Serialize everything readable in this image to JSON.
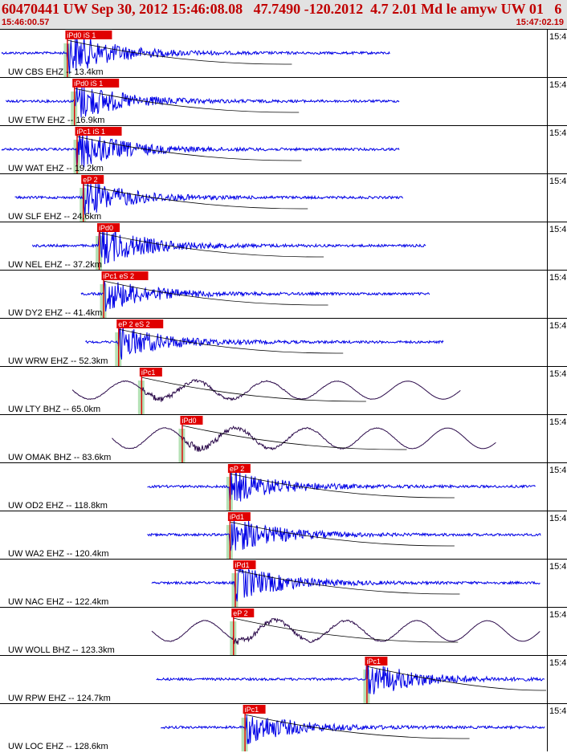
{
  "header": {
    "title": "60470441 UW Sep 30, 2012 15:46:08.08   47.7490 -120.2012  4.7 2.01 Md le amyw UW 01   6",
    "start_time": "15:46:00.57",
    "end_time": "15:47:02.19"
  },
  "colors": {
    "short_period": "#0000e6",
    "broadband": "#2b0a4a",
    "pick": "#e00000",
    "window": "#a8dca8",
    "header_text": "#c00000"
  },
  "chart_data": {
    "type": "line",
    "title": "60470441 UW Sep 30, 2012 15:46:08.08   47.7490 -120.2012  4.7 2.01 Md le amyw UW 01   6",
    "x_range": [
      "15:46:00.57",
      "15:47:02.19"
    ],
    "time_span_s": 61.62,
    "tick_label": "15:4",
    "grid": false,
    "series": [
      {
        "name": "UW CBS EHZ -- 13.4km",
        "start": 0.0,
        "end": 44.0,
        "p_time": 7.4,
        "pick": "iPd0 iS 1",
        "amp": 26,
        "bb": false
      },
      {
        "name": "UW ETW EHZ -- 16.9km",
        "start": 0.5,
        "end": 45.0,
        "p_time": 8.2,
        "pick": "iPd0 iS 1",
        "amp": 24,
        "bb": false
      },
      {
        "name": "UW WAT EHZ -- 19.2km",
        "start": 0.0,
        "end": 45.0,
        "p_time": 8.5,
        "pick": "iPc1 iS 1",
        "amp": 24,
        "bb": false
      },
      {
        "name": "UW SLF EHZ -- 24.6km",
        "start": 1.5,
        "end": 45.5,
        "p_time": 9.2,
        "pick": "eP 2",
        "amp": 22,
        "bb": false
      },
      {
        "name": "UW NEL EHZ -- 37.2km",
        "start": 3.5,
        "end": 48.0,
        "p_time": 11.0,
        "pick": "iPd0",
        "amp": 24,
        "bb": false
      },
      {
        "name": "UW DY2 EHZ -- 41.4km",
        "start": 9.0,
        "end": 48.5,
        "p_time": 11.5,
        "pick": "iPc1 eS 2",
        "amp": 20,
        "bb": false
      },
      {
        "name": "UW WRW EHZ -- 52.3km",
        "start": 9.5,
        "end": 50.0,
        "p_time": 13.2,
        "pick": "eP 2 eS 2",
        "amp": 20,
        "bb": false
      },
      {
        "name": "UW LTY BHZ -- 65.0km",
        "start": 8.0,
        "end": 52.0,
        "p_time": 15.8,
        "pick": "iPc1",
        "amp": 14,
        "bb": true
      },
      {
        "name": "UW OMAK BHZ -- 83.6km",
        "start": 12.5,
        "end": 56.0,
        "p_time": 20.4,
        "pick": "iPd0",
        "amp": 16,
        "bb": true
      },
      {
        "name": "UW OD2 EHZ -- 118.8km",
        "start": 16.5,
        "end": 60.5,
        "p_time": 25.8,
        "pick": "eP 2",
        "amp": 20,
        "bb": false
      },
      {
        "name": "UW WA2 EHZ -- 120.4km",
        "start": 16.5,
        "end": 61.0,
        "p_time": 25.8,
        "pick": "iPd1",
        "amp": 22,
        "bb": false
      },
      {
        "name": "UW NAC EHZ -- 122.4km",
        "start": 17.0,
        "end": 61.0,
        "p_time": 26.4,
        "pick": "iPd1",
        "amp": 22,
        "bb": false
      },
      {
        "name": "UW WOLL BHZ -- 123.3km",
        "start": 17.0,
        "end": 61.0,
        "p_time": 26.2,
        "pick": "eP 2",
        "amp": 16,
        "bb": true
      },
      {
        "name": "UW RPW EHZ -- 124.7km",
        "start": 17.5,
        "end": 61.5,
        "p_time": 41.3,
        "pick": "iPc1",
        "amp": 22,
        "bb": false
      },
      {
        "name": "UW LOC EHZ -- 128.6km",
        "start": 18.0,
        "end": 61.5,
        "p_time": 27.5,
        "pick": "iPc1",
        "amp": 20,
        "bb": false
      }
    ]
  }
}
